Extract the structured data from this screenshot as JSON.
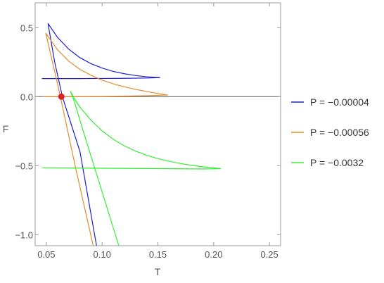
{
  "chart_data": {
    "type": "line",
    "title": "",
    "xlabel": "T",
    "ylabel": "F",
    "xlim": [
      0.04,
      0.26
    ],
    "ylim": [
      -1.08,
      0.68
    ],
    "xticks": [
      "0.05",
      "0.10",
      "0.15",
      "0.20",
      "0.25"
    ],
    "xtick_values": [
      0.05,
      0.1,
      0.15,
      0.2,
      0.25
    ],
    "yticks": [
      "0.5",
      "0.0",
      "-0.5",
      "-1.0"
    ],
    "ytick_values": [
      0.5,
      0.0,
      -0.5,
      -1.0
    ],
    "grid": false,
    "zero_line": true,
    "legend_position": "right",
    "series": [
      {
        "name": "P = −0.00004",
        "color": "#1f1fcc",
        "points": [
          [
            0.095,
            -1.08
          ],
          [
            0.0802,
            -0.4
          ],
          [
            0.0644,
            0.0
          ],
          [
            0.0575,
            0.25
          ],
          [
            0.0515,
            0.53
          ],
          [
            0.06,
            0.43
          ],
          [
            0.07,
            0.345
          ],
          [
            0.08,
            0.283
          ],
          [
            0.09,
            0.239
          ],
          [
            0.1,
            0.207
          ],
          [
            0.11,
            0.183
          ],
          [
            0.12,
            0.166
          ],
          [
            0.13,
            0.153
          ],
          [
            0.14,
            0.144
          ],
          [
            0.152,
            0.138
          ],
          [
            0.14,
            0.135
          ],
          [
            0.12,
            0.133
          ],
          [
            0.1,
            0.132
          ],
          [
            0.08,
            0.131
          ],
          [
            0.06,
            0.131
          ],
          [
            0.046,
            0.131
          ]
        ]
      },
      {
        "name": "P = −0.00056",
        "color": "#e58a2e",
        "points": [
          [
            0.092,
            -1.08
          ],
          [
            0.0758,
            -0.5
          ],
          [
            0.0658,
            -0.12
          ],
          [
            0.0604,
            0.08
          ],
          [
            0.0495,
            0.46
          ],
          [
            0.06,
            0.34
          ],
          [
            0.07,
            0.258
          ],
          [
            0.08,
            0.198
          ],
          [
            0.09,
            0.155
          ],
          [
            0.1,
            0.12
          ],
          [
            0.11,
            0.093
          ],
          [
            0.12,
            0.071
          ],
          [
            0.13,
            0.053
          ],
          [
            0.14,
            0.037
          ],
          [
            0.15,
            0.023
          ],
          [
            0.159,
            0.012
          ],
          [
            0.14,
            0.007
          ],
          [
            0.12,
            0.004
          ],
          [
            0.1,
            0.002
          ],
          [
            0.08,
            0.001
          ],
          [
            0.06,
            0.0
          ],
          [
            0.046,
            0.0
          ]
        ]
      },
      {
        "name": "P = −0.0032",
        "color": "#33ee33",
        "points": [
          [
            0.115,
            -1.08
          ],
          [
            0.085,
            -0.3
          ],
          [
            0.0745,
            -0.02
          ],
          [
            0.0715,
            0.04
          ],
          [
            0.075,
            -0.01
          ],
          [
            0.08,
            -0.075
          ],
          [
            0.09,
            -0.17
          ],
          [
            0.1,
            -0.248
          ],
          [
            0.11,
            -0.309
          ],
          [
            0.12,
            -0.357
          ],
          [
            0.13,
            -0.395
          ],
          [
            0.14,
            -0.425
          ],
          [
            0.15,
            -0.449
          ],
          [
            0.16,
            -0.468
          ],
          [
            0.17,
            -0.484
          ],
          [
            0.18,
            -0.497
          ],
          [
            0.19,
            -0.508
          ],
          [
            0.2065,
            -0.522
          ],
          [
            0.19,
            -0.524
          ],
          [
            0.16,
            -0.522
          ],
          [
            0.13,
            -0.52
          ],
          [
            0.1,
            -0.519
          ],
          [
            0.07,
            -0.517
          ],
          [
            0.046,
            -0.516
          ]
        ]
      }
    ],
    "marker": {
      "x": 0.0635,
      "y": 0.0,
      "color": "#dd2222"
    }
  }
}
